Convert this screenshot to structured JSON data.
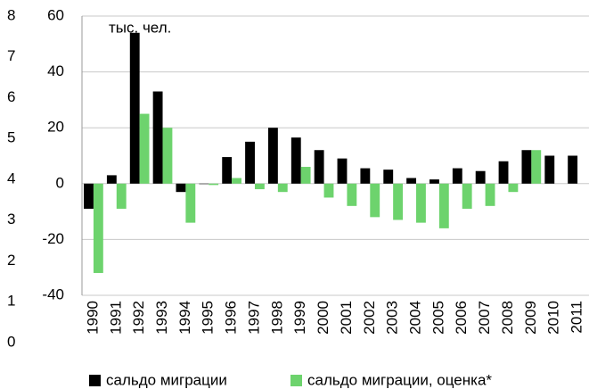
{
  "chart_data": {
    "type": "bar",
    "annotation": "тыс. чел.",
    "categories": [
      "1990",
      "1991",
      "1992",
      "1993",
      "1994",
      "1995",
      "1996",
      "1997",
      "1998",
      "1999",
      "2000",
      "2001",
      "2002",
      "2003",
      "2004",
      "2005",
      "2006",
      "2007",
      "2008",
      "2009",
      "2010",
      "2011"
    ],
    "series": [
      {
        "name": "сальдо миграции",
        "color": "#000000",
        "values": [
          -9,
          3,
          54,
          33,
          -3,
          0,
          9.5,
          15,
          20,
          16.5,
          12,
          9,
          5.5,
          5,
          2,
          1.5,
          5.5,
          4.5,
          8,
          12,
          10,
          10
        ]
      },
      {
        "name": "сальдо миграции, оценка*",
        "color": "#6dd36d",
        "values": [
          -32,
          -9,
          25,
          20,
          -14,
          -0.5,
          2,
          -2,
          -3,
          6,
          -5,
          -8,
          -12,
          -13,
          -14,
          -16,
          -9,
          -8,
          -3,
          12,
          null,
          null
        ]
      }
    ],
    "ylim": [
      -40,
      60
    ],
    "yticks": [
      -40,
      -20,
      0,
      20,
      40,
      60
    ],
    "y2lim": [
      0,
      8
    ],
    "y2ticks": [
      0,
      1,
      2,
      3,
      4,
      5,
      6,
      7,
      8
    ],
    "grid": true
  }
}
